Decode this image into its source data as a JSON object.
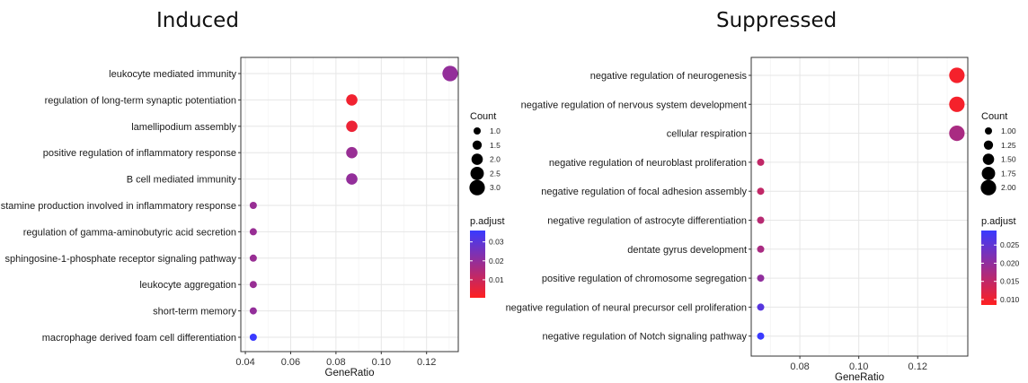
{
  "chart_data": [
    {
      "type": "scatter",
      "title": "Induced",
      "xlabel": "GeneRatio",
      "ylabel": "",
      "xlim": [
        0.038,
        0.134
      ],
      "xticks": [
        0.04,
        0.06,
        0.08,
        0.1,
        0.12
      ],
      "xtick_labels": [
        "0.04",
        "0.06",
        "0.08",
        "0.10",
        "0.12"
      ],
      "grid": true,
      "categories": [
        "leukocyte mediated immunity",
        "regulation of long-term synaptic potentiation",
        "lamellipodium assembly",
        "positive regulation of inflammatory response",
        "B cell mediated immunity",
        "histamine production involved in inflammatory response",
        "regulation of gamma-aminobutyric acid secretion",
        "sphingosine-1-phosphate receptor signaling pathway",
        "leukocyte aggregation",
        "short-term memory",
        "macrophage derived foam cell differentiation"
      ],
      "points": [
        {
          "gene_ratio": 0.1304,
          "count": 3,
          "p_adjust": 0.02
        },
        {
          "gene_ratio": 0.087,
          "count": 2,
          "p_adjust": 0.003
        },
        {
          "gene_ratio": 0.087,
          "count": 2,
          "p_adjust": 0.004
        },
        {
          "gene_ratio": 0.087,
          "count": 2,
          "p_adjust": 0.019
        },
        {
          "gene_ratio": 0.087,
          "count": 2,
          "p_adjust": 0.02
        },
        {
          "gene_ratio": 0.0435,
          "count": 1,
          "p_adjust": 0.019
        },
        {
          "gene_ratio": 0.0435,
          "count": 1,
          "p_adjust": 0.019
        },
        {
          "gene_ratio": 0.0435,
          "count": 1,
          "p_adjust": 0.019
        },
        {
          "gene_ratio": 0.0435,
          "count": 1,
          "p_adjust": 0.019
        },
        {
          "gene_ratio": 0.0435,
          "count": 1,
          "p_adjust": 0.02
        },
        {
          "gene_ratio": 0.0435,
          "count": 1,
          "p_adjust": 0.036
        }
      ],
      "legend_size": {
        "title": "Count",
        "labels": [
          "1.0",
          "1.5",
          "2.0",
          "2.5",
          "3.0"
        ],
        "values": [
          1.0,
          1.5,
          2.0,
          2.5,
          3.0
        ]
      },
      "legend_color": {
        "title": "p.adjust",
        "labels": [
          "0.03",
          "0.02",
          "0.01"
        ],
        "values": [
          0.03,
          0.02,
          0.01
        ],
        "range": [
          0.0005,
          0.036
        ],
        "low_color": "#ff2020",
        "high_color": "#3a3aff"
      }
    },
    {
      "type": "scatter",
      "title": "Suppressed",
      "xlabel": "GeneRatio",
      "ylabel": "",
      "xlim": [
        0.0635,
        0.137
      ],
      "xticks": [
        0.08,
        0.1,
        0.12
      ],
      "xtick_labels": [
        "0.08",
        "0.10",
        "0.12"
      ],
      "grid": true,
      "categories": [
        "negative regulation of neurogenesis",
        "negative regulation of nervous system development",
        "cellular respiration",
        "negative regulation of neuroblast proliferation",
        "negative regulation of focal adhesion assembly",
        "negative regulation of astrocyte differentiation",
        "dentate gyrus development",
        "positive regulation of chromosome segregation",
        "negative regulation of neural precursor cell proliferation",
        "negative regulation of Notch signaling pathway"
      ],
      "points": [
        {
          "gene_ratio": 0.1333,
          "count": 2,
          "p_adjust": 0.0095
        },
        {
          "gene_ratio": 0.1333,
          "count": 2,
          "p_adjust": 0.0095
        },
        {
          "gene_ratio": 0.1333,
          "count": 2,
          "p_adjust": 0.0175
        },
        {
          "gene_ratio": 0.0667,
          "count": 1,
          "p_adjust": 0.015
        },
        {
          "gene_ratio": 0.0667,
          "count": 1,
          "p_adjust": 0.015
        },
        {
          "gene_ratio": 0.0667,
          "count": 1,
          "p_adjust": 0.016
        },
        {
          "gene_ratio": 0.0667,
          "count": 1,
          "p_adjust": 0.0175
        },
        {
          "gene_ratio": 0.0667,
          "count": 1,
          "p_adjust": 0.02
        },
        {
          "gene_ratio": 0.0667,
          "count": 1,
          "p_adjust": 0.026
        },
        {
          "gene_ratio": 0.0667,
          "count": 1,
          "p_adjust": 0.029
        }
      ],
      "legend_size": {
        "title": "Count",
        "labels": [
          "1.00",
          "1.25",
          "1.50",
          "1.75",
          "2.00"
        ],
        "values": [
          1.0,
          1.25,
          1.5,
          1.75,
          2.0
        ]
      },
      "legend_color": {
        "title": "p.adjust",
        "labels": [
          "0.025",
          "0.020",
          "0.015",
          "0.010"
        ],
        "values": [
          0.025,
          0.02,
          0.015,
          0.01
        ],
        "range": [
          0.0085,
          0.029
        ],
        "low_color": "#ff2020",
        "high_color": "#3a3aff"
      }
    }
  ]
}
